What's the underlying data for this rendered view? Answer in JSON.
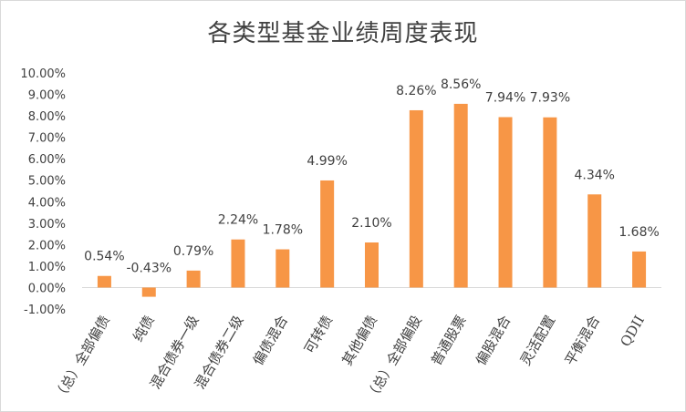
{
  "chart_data": {
    "type": "bar",
    "title": "各类型基金业绩周度表现",
    "categories": [
      "（总）全部偏债",
      "纯债",
      "混合债券一级",
      "混合债券二级",
      "偏债混合",
      "可转债",
      "其他偏债",
      "（总）全部偏股",
      "普通股票",
      "偏股混合",
      "灵活配置",
      "平衡混合",
      "QDII"
    ],
    "values": [
      0.54,
      -0.43,
      0.79,
      2.24,
      1.78,
      4.99,
      2.1,
      8.26,
      8.56,
      7.94,
      7.93,
      4.34,
      1.68
    ],
    "value_labels": [
      "0.54%",
      "-0.43%",
      "0.79%",
      "2.24%",
      "1.78%",
      "4.99%",
      "2.10%",
      "8.26%",
      "8.56%",
      "7.94%",
      "7.93%",
      "4.34%",
      "1.68%"
    ],
    "y_ticks": [
      "-1.00%",
      "0.00%",
      "1.00%",
      "2.00%",
      "3.00%",
      "4.00%",
      "5.00%",
      "6.00%",
      "7.00%",
      "8.00%",
      "9.00%",
      "10.00%"
    ],
    "ylim": [
      -1,
      10
    ],
    "unit": "%",
    "xlabel": "",
    "ylabel": "",
    "grid": false,
    "colors": {
      "bar": "#F79646",
      "axis": "#d9d9d9",
      "text": "#404040"
    }
  }
}
